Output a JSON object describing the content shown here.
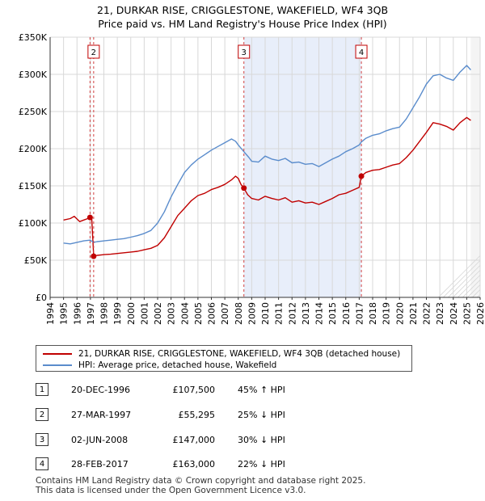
{
  "title": {
    "line1": "21, DURKAR RISE, CRIGGLESTONE, WAKEFIELD, WF4 3QB",
    "line2": "Price paid vs. HM Land Registry's House Price Index (HPI)"
  },
  "colors": {
    "price_line": "#c00000",
    "hpi_line": "#5a8ccc",
    "shade": "#e8eefa",
    "marker_line": "#d04040",
    "grid": "#d8d8d8"
  },
  "chart_data": {
    "type": "line",
    "xlim": [
      1994,
      2026
    ],
    "ylim": [
      0,
      350000
    ],
    "x_ticks": [
      "1994",
      "1995",
      "1996",
      "1997",
      "1998",
      "1999",
      "2000",
      "2001",
      "2002",
      "2003",
      "2004",
      "2005",
      "2006",
      "2007",
      "2008",
      "2009",
      "2010",
      "2011",
      "2012",
      "2013",
      "2014",
      "2015",
      "2016",
      "2017",
      "2018",
      "2019",
      "2020",
      "2021",
      "2022",
      "2023",
      "2024",
      "2025",
      "2026"
    ],
    "y_ticks": [
      {
        "value": 0,
        "label": "£0"
      },
      {
        "value": 50000,
        "label": "£50K"
      },
      {
        "value": 100000,
        "label": "£100K"
      },
      {
        "value": 150000,
        "label": "£150K"
      },
      {
        "value": 200000,
        "label": "£200K"
      },
      {
        "value": 250000,
        "label": "£250K"
      },
      {
        "value": 300000,
        "label": "£300K"
      },
      {
        "value": 350000,
        "label": "£350K"
      }
    ],
    "shaded_range": [
      2008.42,
      2017.16
    ],
    "data_end": 2025.3,
    "sale_markers": [
      {
        "label": "1",
        "x": 1996.97,
        "y": 107500
      },
      {
        "label": "2",
        "x": 1997.24,
        "y": 55295
      },
      {
        "label": "3",
        "x": 2008.42,
        "y": 147000
      },
      {
        "label": "4",
        "x": 2017.16,
        "y": 163000
      }
    ],
    "series": [
      {
        "name": "21, DURKAR RISE, CRIGGLESTONE, WAKEFIELD, WF4 3QB (detached house)",
        "color": "#c00000",
        "points": [
          [
            1995.0,
            104000
          ],
          [
            1995.5,
            106000
          ],
          [
            1995.8,
            109000
          ],
          [
            1996.2,
            102000
          ],
          [
            1996.5,
            104000
          ],
          [
            1996.8,
            106000
          ],
          [
            1996.97,
            107500
          ],
          [
            1997.1,
            106000
          ],
          [
            1997.24,
            55295
          ],
          [
            1997.5,
            56500
          ],
          [
            1998.0,
            57500
          ],
          [
            1998.5,
            58000
          ],
          [
            1999.0,
            59000
          ],
          [
            1999.5,
            60000
          ],
          [
            2000.0,
            61000
          ],
          [
            2000.5,
            62000
          ],
          [
            2001.0,
            64000
          ],
          [
            2001.5,
            66000
          ],
          [
            2002.0,
            70000
          ],
          [
            2002.5,
            80000
          ],
          [
            2003.0,
            95000
          ],
          [
            2003.5,
            110000
          ],
          [
            2004.0,
            120000
          ],
          [
            2004.5,
            130000
          ],
          [
            2005.0,
            137000
          ],
          [
            2005.5,
            140000
          ],
          [
            2006.0,
            145000
          ],
          [
            2006.5,
            148000
          ],
          [
            2007.0,
            152000
          ],
          [
            2007.5,
            158000
          ],
          [
            2007.8,
            163000
          ],
          [
            2008.0,
            160000
          ],
          [
            2008.2,
            152000
          ],
          [
            2008.42,
            147000
          ],
          [
            2008.7,
            138000
          ],
          [
            2009.0,
            133000
          ],
          [
            2009.5,
            131000
          ],
          [
            2010.0,
            136000
          ],
          [
            2010.5,
            133000
          ],
          [
            2011.0,
            131000
          ],
          [
            2011.5,
            134000
          ],
          [
            2012.0,
            128000
          ],
          [
            2012.5,
            130000
          ],
          [
            2013.0,
            127000
          ],
          [
            2013.5,
            128000
          ],
          [
            2014.0,
            125000
          ],
          [
            2014.5,
            129000
          ],
          [
            2015.0,
            133000
          ],
          [
            2015.5,
            138000
          ],
          [
            2016.0,
            140000
          ],
          [
            2016.5,
            144000
          ],
          [
            2017.0,
            148000
          ],
          [
            2017.16,
            163000
          ],
          [
            2017.5,
            168000
          ],
          [
            2018.0,
            171000
          ],
          [
            2018.5,
            172000
          ],
          [
            2019.0,
            175000
          ],
          [
            2019.5,
            178000
          ],
          [
            2020.0,
            180000
          ],
          [
            2020.5,
            188000
          ],
          [
            2021.0,
            198000
          ],
          [
            2021.5,
            210000
          ],
          [
            2022.0,
            222000
          ],
          [
            2022.5,
            235000
          ],
          [
            2023.0,
            233000
          ],
          [
            2023.5,
            230000
          ],
          [
            2024.0,
            225000
          ],
          [
            2024.5,
            235000
          ],
          [
            2025.0,
            242000
          ],
          [
            2025.3,
            238000
          ]
        ]
      },
      {
        "name": "HPI: Average price, detached house, Wakefield",
        "color": "#5a8ccc",
        "points": [
          [
            1995.0,
            73000
          ],
          [
            1995.5,
            72000
          ],
          [
            1996.0,
            74000
          ],
          [
            1996.5,
            76000
          ],
          [
            1996.97,
            77000
          ],
          [
            1997.24,
            74000
          ],
          [
            1997.5,
            75000
          ],
          [
            1998.0,
            76000
          ],
          [
            1998.5,
            77000
          ],
          [
            1999.0,
            78000
          ],
          [
            1999.5,
            79000
          ],
          [
            2000.0,
            81000
          ],
          [
            2000.5,
            83000
          ],
          [
            2001.0,
            86000
          ],
          [
            2001.5,
            90000
          ],
          [
            2002.0,
            100000
          ],
          [
            2002.5,
            115000
          ],
          [
            2003.0,
            135000
          ],
          [
            2003.5,
            152000
          ],
          [
            2004.0,
            168000
          ],
          [
            2004.5,
            178000
          ],
          [
            2005.0,
            186000
          ],
          [
            2005.5,
            192000
          ],
          [
            2006.0,
            198000
          ],
          [
            2006.5,
            203000
          ],
          [
            2007.0,
            208000
          ],
          [
            2007.5,
            213000
          ],
          [
            2007.8,
            210000
          ],
          [
            2008.0,
            205000
          ],
          [
            2008.42,
            196000
          ],
          [
            2008.8,
            188000
          ],
          [
            2009.0,
            183000
          ],
          [
            2009.5,
            182000
          ],
          [
            2010.0,
            190000
          ],
          [
            2010.5,
            186000
          ],
          [
            2011.0,
            184000
          ],
          [
            2011.5,
            187000
          ],
          [
            2012.0,
            181000
          ],
          [
            2012.5,
            182000
          ],
          [
            2013.0,
            179000
          ],
          [
            2013.5,
            180000
          ],
          [
            2014.0,
            176000
          ],
          [
            2014.5,
            181000
          ],
          [
            2015.0,
            186000
          ],
          [
            2015.5,
            190000
          ],
          [
            2016.0,
            196000
          ],
          [
            2016.5,
            200000
          ],
          [
            2017.0,
            205000
          ],
          [
            2017.16,
            209000
          ],
          [
            2017.5,
            214000
          ],
          [
            2018.0,
            218000
          ],
          [
            2018.5,
            220000
          ],
          [
            2019.0,
            224000
          ],
          [
            2019.5,
            227000
          ],
          [
            2020.0,
            229000
          ],
          [
            2020.5,
            240000
          ],
          [
            2021.0,
            255000
          ],
          [
            2021.5,
            270000
          ],
          [
            2022.0,
            287000
          ],
          [
            2022.5,
            298000
          ],
          [
            2023.0,
            300000
          ],
          [
            2023.5,
            295000
          ],
          [
            2024.0,
            292000
          ],
          [
            2024.5,
            303000
          ],
          [
            2025.0,
            312000
          ],
          [
            2025.3,
            306000
          ]
        ]
      }
    ]
  },
  "legend": {
    "price_label": "21, DURKAR RISE, CRIGGLESTONE, WAKEFIELD, WF4 3QB (detached house)",
    "hpi_label": "HPI: Average price, detached house, Wakefield"
  },
  "sales": [
    {
      "num": "1",
      "date": "20-DEC-1996",
      "price": "£107,500",
      "hpi": "45% ↑ HPI"
    },
    {
      "num": "2",
      "date": "27-MAR-1997",
      "price": "£55,295",
      "hpi": "25% ↓ HPI"
    },
    {
      "num": "3",
      "date": "02-JUN-2008",
      "price": "£147,000",
      "hpi": "30% ↓ HPI"
    },
    {
      "num": "4",
      "date": "28-FEB-2017",
      "price": "£163,000",
      "hpi": "22% ↓ HPI"
    }
  ],
  "footer": {
    "line1": "Contains HM Land Registry data © Crown copyright and database right 2025.",
    "line2": "This data is licensed under the Open Government Licence v3.0."
  }
}
